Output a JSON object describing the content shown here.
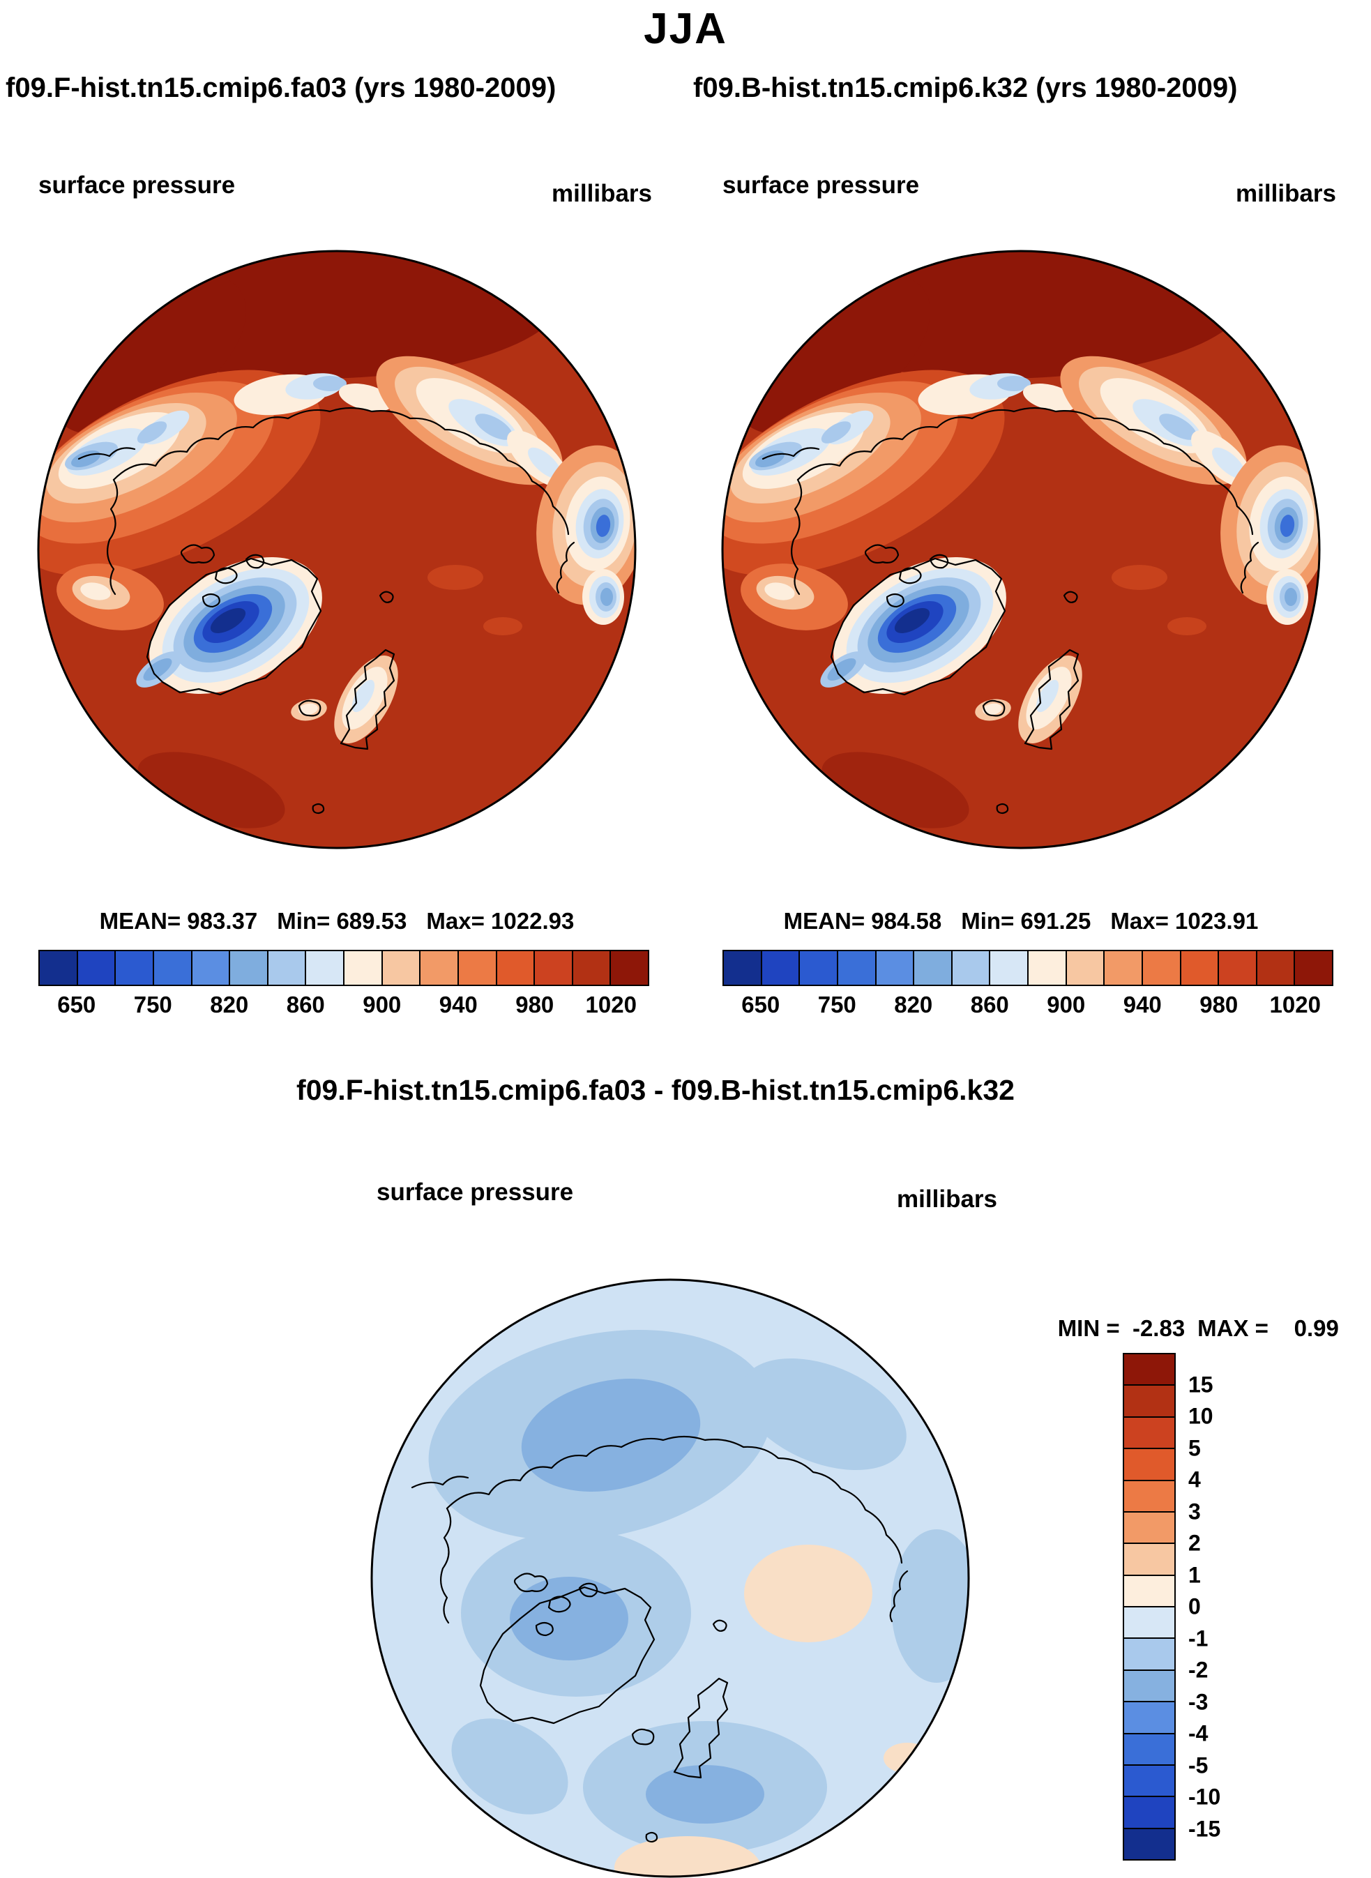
{
  "title": "JJA",
  "panels": {
    "left": {
      "subtitle": "f09.F-hist.tn15.cmip6.fa03 (yrs 1980-2009)",
      "field_label": "surface pressure",
      "units_label": "millibars",
      "stats": {
        "mean": "MEAN= 983.37",
        "min": "Min= 689.53",
        "max": "Max= 1022.93"
      }
    },
    "right": {
      "subtitle": "f09.B-hist.tn15.cmip6.k32 (yrs 1980-2009)",
      "field_label": "surface pressure",
      "units_label": "millibars",
      "stats": {
        "mean": "MEAN= 984.58",
        "min": "Min= 691.25",
        "max": "Max= 1023.91"
      }
    }
  },
  "pressure_colorbar": {
    "colors": [
      "#132f8e",
      "#1f44c0",
      "#2b5ad0",
      "#3a6fd8",
      "#5b8ee2",
      "#7fadde",
      "#a9c9ec",
      "#d7e7f6",
      "#fdeedd",
      "#f7c7a2",
      "#f29a67",
      "#ec7a45",
      "#e05a2b",
      "#cc4220",
      "#b23114",
      "#8e1708"
    ],
    "ticks": [
      "650",
      "750",
      "820",
      "860",
      "900",
      "940",
      "980",
      "1020"
    ]
  },
  "diff": {
    "title": "f09.F-hist.tn15.cmip6.fa03 - f09.B-hist.tn15.cmip6.k32",
    "field_label": "surface pressure",
    "units_label": "millibars",
    "min_label": "MIN =  -2.83",
    "max_label": "MAX =    0.99",
    "colorbar": {
      "colors": [
        "#8e1708",
        "#b23114",
        "#cc4220",
        "#e05a2b",
        "#ec7a45",
        "#f29a67",
        "#f7c7a2",
        "#fdeedd",
        "#d7e7f6",
        "#a9c9ec",
        "#86b1e0",
        "#5b8ee2",
        "#3a6fd8",
        "#2b5ad0",
        "#1f44c0",
        "#132f8e"
      ],
      "ticks": [
        "15",
        "10",
        "5",
        "4",
        "3",
        "2",
        "1",
        "0",
        "-1",
        "-2",
        "-3",
        "-4",
        "-5",
        "-10",
        "-15"
      ]
    }
  },
  "palette": {
    "maroon": "#8e1708",
    "red": "#b23114",
    "red_orange": "#d14a20",
    "orange": "#e86f3d",
    "light_orange": "#f29a67",
    "peach": "#f7c7a2",
    "cream": "#fdeedd",
    "pale_blue": "#d7e7f6",
    "light_blue": "#a9c9ec",
    "mid_blue": "#7fadde",
    "blue": "#3a6fd8",
    "deep_blue": "#1f44c0",
    "navy": "#132f8e",
    "diff_base": "#cfe2f4",
    "diff_mid": "#aecde9",
    "diff_deep": "#86b1e0",
    "diff_peach": "#f9dfc6"
  },
  "chart_data": [
    {
      "type": "heatmap",
      "subtype": "north-polar-stereographic-map",
      "season": "JJA",
      "title": "f09.F-hist.tn15.cmip6.fa03 (yrs 1980-2009)",
      "field": "surface pressure",
      "units": "millibars",
      "stats": {
        "mean": 983.37,
        "min": 689.53,
        "max": 1022.93
      },
      "colorbar_ticks": [
        650,
        750,
        820,
        860,
        900,
        940,
        980,
        1020
      ],
      "legend_position": "bottom"
    },
    {
      "type": "heatmap",
      "subtype": "north-polar-stereographic-map",
      "season": "JJA",
      "title": "f09.B-hist.tn15.cmip6.k32 (yrs 1980-2009)",
      "field": "surface pressure",
      "units": "millibars",
      "stats": {
        "mean": 984.58,
        "min": 691.25,
        "max": 1023.91
      },
      "colorbar_ticks": [
        650,
        750,
        820,
        860,
        900,
        940,
        980,
        1020
      ],
      "legend_position": "bottom"
    },
    {
      "type": "heatmap",
      "subtype": "north-polar-stereographic-map",
      "season": "JJA",
      "title": "f09.F-hist.tn15.cmip6.fa03 - f09.B-hist.tn15.cmip6.k32",
      "field": "surface pressure",
      "units": "millibars",
      "stats": {
        "min": -2.83,
        "max": 0.99
      },
      "colorbar_ticks": [
        15,
        10,
        5,
        4,
        3,
        2,
        1,
        0,
        -1,
        -2,
        -3,
        -4,
        -5,
        -10,
        -15
      ],
      "legend_position": "right"
    }
  ]
}
